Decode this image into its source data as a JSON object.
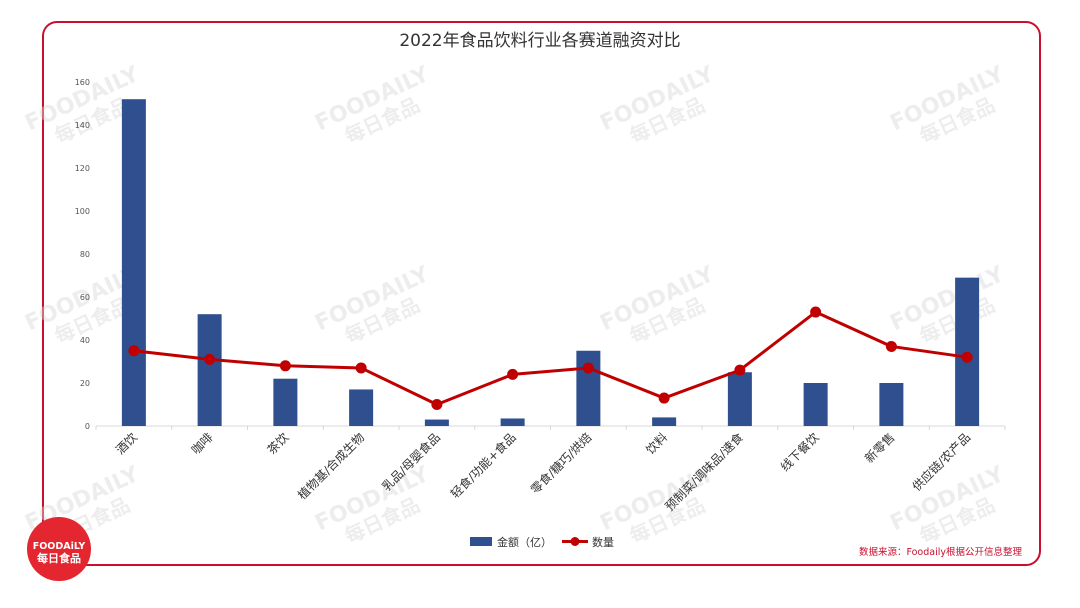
{
  "colors": {
    "frame": "#c8102e",
    "bar": "#2f4f8f",
    "line": "#c00000",
    "axis": "#d9d9d9",
    "tick": "#555555"
  },
  "watermark": {
    "line1": "FOODAILY",
    "line2": "每日食品"
  },
  "logo": {
    "line1": "FOODAiLY",
    "line2": "每日食品"
  },
  "source": "数据来源：Foodaily根据公开信息整理",
  "chart_data": {
    "type": "bar",
    "title": "2022年食品饮料行业各赛道融资对比",
    "xlabel": "",
    "ylabel": "",
    "ylim": [
      0,
      160
    ],
    "yticks": [
      0,
      20,
      40,
      60,
      80,
      100,
      120,
      140,
      160
    ],
    "grid": false,
    "legend_position": "bottom",
    "categories": [
      "酒饮",
      "咖啡",
      "茶饮",
      "植物基/合成生物",
      "乳品/母婴食品",
      "轻食/功能+食品",
      "零食/糖巧/烘焙",
      "饮料",
      "预制菜/调味品/速食",
      "线下餐饮",
      "新零售",
      "供应链/农产品"
    ],
    "series": [
      {
        "name": "金额（亿）",
        "type": "bar",
        "values": [
          152,
          52,
          22,
          17,
          3,
          3.5,
          35,
          4,
          25,
          20,
          20,
          69
        ]
      },
      {
        "name": "数量",
        "type": "line",
        "values": [
          35,
          31,
          28,
          27,
          10,
          24,
          27,
          13,
          26,
          53,
          37,
          32
        ]
      }
    ]
  }
}
